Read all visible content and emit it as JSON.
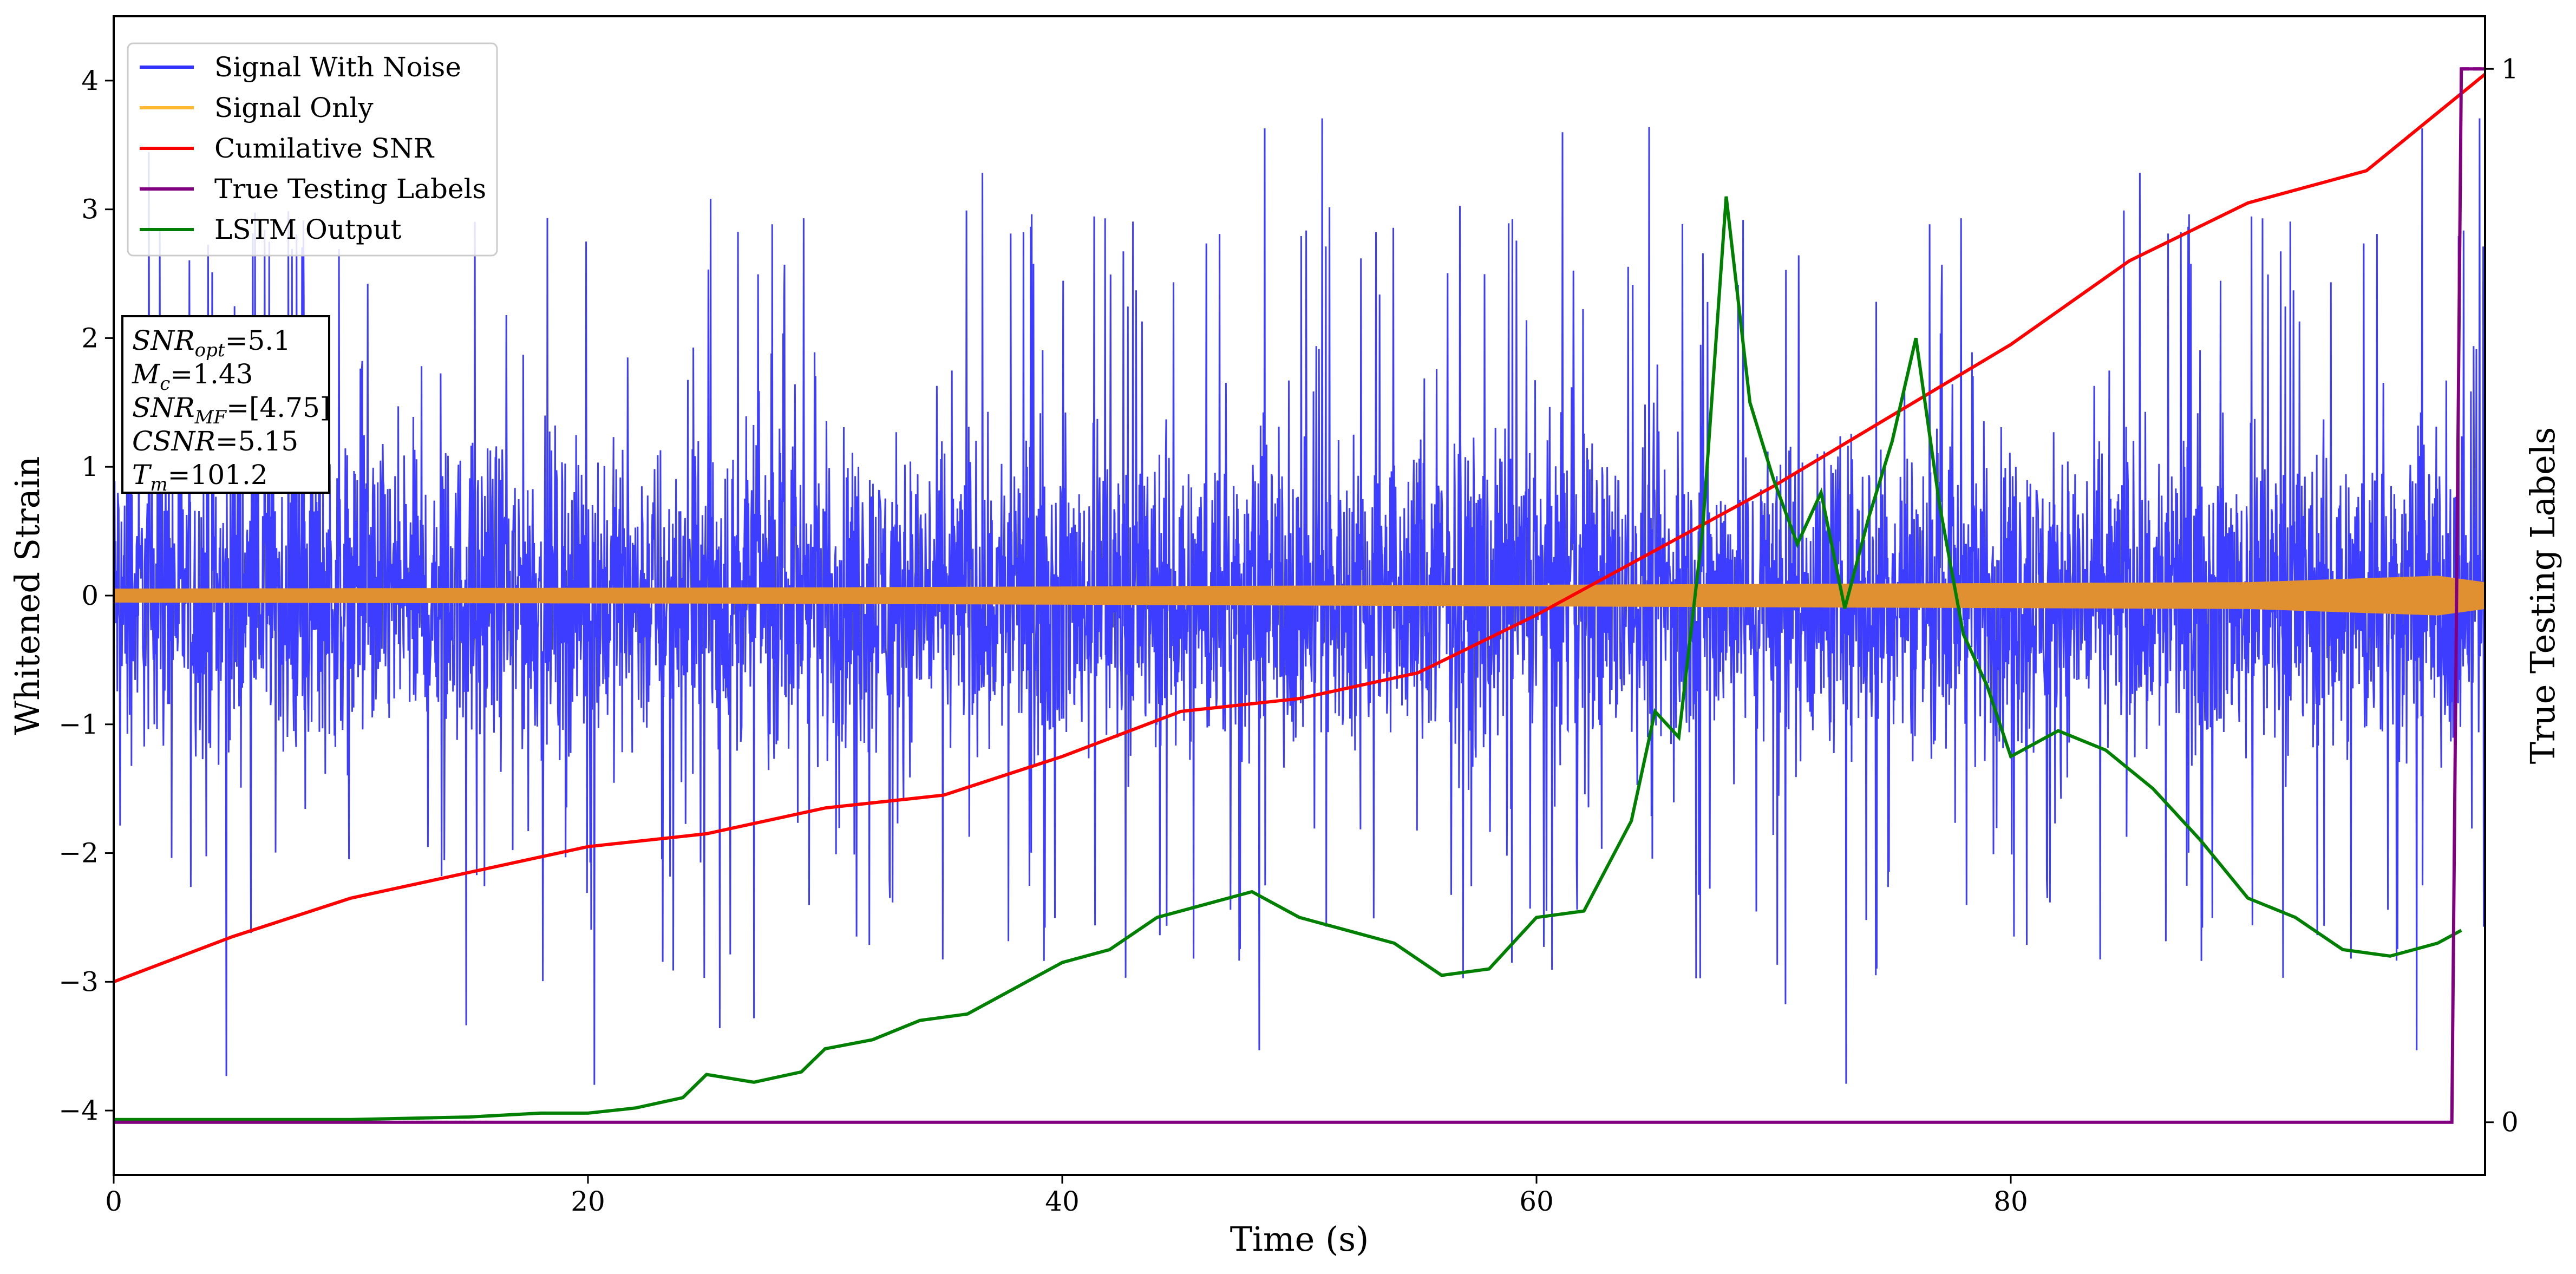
{
  "chart_data": {
    "type": "line",
    "title": "",
    "xlabel": "Time (s)",
    "ylabel": "Whitened Strain",
    "y2label": "True Testing Labels",
    "xlim": [
      0,
      100
    ],
    "ylim": [
      -4.5,
      4.5
    ],
    "y2lim": [
      -0.05,
      1.05
    ],
    "x_ticks": [
      0,
      20,
      40,
      60,
      80
    ],
    "x_tick_labels": [
      "0",
      "20",
      "40",
      "60",
      "80"
    ],
    "y_ticks": [
      4,
      3,
      2,
      1,
      0,
      -1,
      -2,
      -3,
      -4
    ],
    "y_tick_labels": [
      "4",
      "3",
      "2",
      "1",
      "0",
      "−1",
      "−2",
      "−3",
      "−4"
    ],
    "y2_ticks": [
      1,
      0
    ],
    "y2_tick_labels": [
      "1",
      "0"
    ],
    "grid": false,
    "legend_position": "top-left",
    "legend": [
      {
        "label": "Signal With Noise",
        "color": "#3333ff"
      },
      {
        "label": "Signal Only",
        "color": "#ffb833"
      },
      {
        "label": "Cumilative SNR",
        "color": "#ff0000"
      },
      {
        "label": "True Testing Labels",
        "color": "#800080"
      },
      {
        "label": "LSTM Output",
        "color": "#008000"
      }
    ],
    "info_box": [
      {
        "base": "SNR",
        "sub": "opt",
        "value": "=5.1"
      },
      {
        "base": "M",
        "sub": "c",
        "value": "=1.43"
      },
      {
        "base": "SNR",
        "sub": "MF",
        "value": "=[4.75]"
      },
      {
        "base": "CSNR",
        "sub": "",
        "value": "=5.15"
      },
      {
        "base": "T",
        "sub": "m",
        "value": "=101.2"
      }
    ],
    "series": [
      {
        "name": "Signal With Noise",
        "color": "#3333ff",
        "noise_band_inner": [
          -1.5,
          1.5
        ],
        "noise_spike_range": [
          -3.8,
          4.1
        ]
      },
      {
        "name": "Signal Only",
        "color": "#e09030",
        "amplitude": [
          [
            0,
            0.05
          ],
          [
            30,
            0.06
          ],
          [
            60,
            0.08
          ],
          [
            90,
            0.1
          ],
          [
            98,
            0.15
          ],
          [
            100,
            0.1
          ]
        ]
      },
      {
        "name": "Cumilative SNR",
        "color": "#ff0000",
        "x": [
          0,
          5,
          10,
          15,
          20,
          25,
          30,
          35,
          40,
          45,
          50,
          55,
          60,
          65,
          70,
          75,
          80,
          85,
          90,
          95,
          100
        ],
        "y": [
          -3.0,
          -2.65,
          -2.35,
          -2.15,
          -1.95,
          -1.85,
          -1.65,
          -1.55,
          -1.25,
          -0.9,
          -0.8,
          -0.6,
          -0.15,
          0.35,
          0.85,
          1.4,
          1.95,
          2.6,
          3.05,
          3.3,
          4.05
        ]
      },
      {
        "name": "True Testing Labels",
        "color": "#800080",
        "axis": "y2",
        "x": [
          0,
          98.6,
          99.0,
          100
        ],
        "y": [
          0,
          0,
          1,
          1
        ]
      },
      {
        "name": "LSTM Output",
        "color": "#008000",
        "x": [
          0,
          10,
          15,
          18,
          20,
          22,
          24,
          25,
          27,
          29,
          30,
          32,
          34,
          36,
          38,
          40,
          42,
          44,
          46,
          48,
          50,
          52,
          54,
          56,
          58,
          60,
          62,
          64,
          65,
          66,
          67,
          68,
          69,
          70,
          71,
          72,
          73,
          74,
          75,
          76,
          77,
          78,
          79,
          80,
          82,
          84,
          86,
          88,
          90,
          92,
          94,
          96,
          98,
          99
        ],
        "y": [
          -4.07,
          -4.07,
          -4.05,
          -4.02,
          -4.02,
          -3.98,
          -3.9,
          -3.72,
          -3.78,
          -3.7,
          -3.52,
          -3.45,
          -3.3,
          -3.25,
          -3.05,
          -2.85,
          -2.75,
          -2.5,
          -2.4,
          -2.3,
          -2.5,
          -2.6,
          -2.7,
          -2.95,
          -2.9,
          -2.5,
          -2.45,
          -1.75,
          -0.9,
          -1.1,
          0.5,
          3.1,
          1.5,
          0.9,
          0.4,
          0.8,
          -0.1,
          0.6,
          1.2,
          2.0,
          0.7,
          -0.3,
          -0.7,
          -1.25,
          -1.05,
          -1.2,
          -1.5,
          -1.9,
          -2.35,
          -2.5,
          -2.75,
          -2.8,
          -2.7,
          -2.6
        ]
      }
    ]
  }
}
